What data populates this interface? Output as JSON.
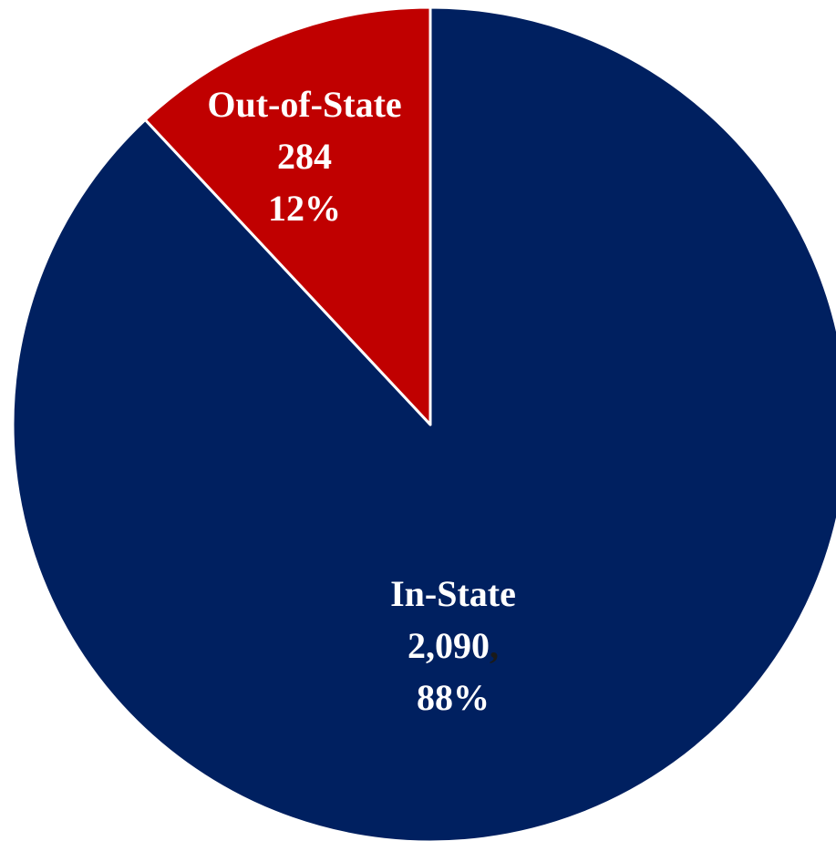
{
  "chart_data": {
    "type": "pie",
    "title": "",
    "slices": [
      {
        "name": "In-State",
        "value": 2090,
        "value_label": "2,090",
        "separator": ",",
        "percent": 88,
        "percent_label": "88%",
        "color": "#002060"
      },
      {
        "name": "Out-of-State",
        "value": 284,
        "value_label": "284",
        "separator": "",
        "percent": 12,
        "percent_label": "12%",
        "color": "#C00000"
      }
    ],
    "slice_border_color": "#ffffff",
    "legend": "none"
  }
}
